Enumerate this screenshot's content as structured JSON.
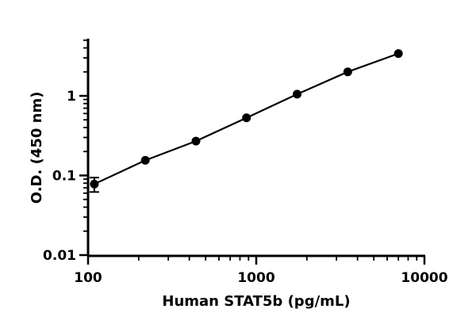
{
  "chart_data": {
    "type": "scatter",
    "title": "",
    "xlabel": "Human STAT5b (pg/mL)",
    "ylabel": "O.D. (450 nm)",
    "x_scale": "log",
    "y_scale": "log",
    "xlim": [
      100,
      10000
    ],
    "ylim": [
      0.01,
      5
    ],
    "x_ticks": [
      {
        "value": 100,
        "label": "100"
      },
      {
        "value": 1000,
        "label": "1000"
      },
      {
        "value": 10000,
        "label": "10000"
      }
    ],
    "y_ticks": [
      {
        "value": 0.01,
        "label": "0.01"
      },
      {
        "value": 0.1,
        "label": "0.1"
      },
      {
        "value": 1,
        "label": "1"
      }
    ],
    "grid": false,
    "legend": "none",
    "series": [
      {
        "x": [
          109,
          219,
          438,
          875,
          1750,
          3500,
          7000
        ],
        "y": [
          0.078,
          0.155,
          0.27,
          0.53,
          1.05,
          2.0,
          3.4
        ],
        "y_error": [
          0.016,
          0,
          0,
          0,
          0,
          0,
          0
        ],
        "fit": "line"
      }
    ]
  }
}
